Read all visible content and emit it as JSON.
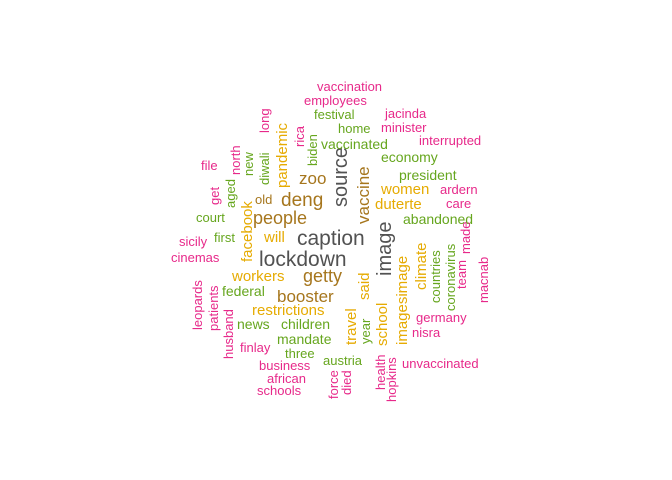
{
  "colors": {
    "gray": "#525252",
    "brown": "#a6761d",
    "gold": "#e6ab02",
    "green": "#66a61e",
    "magenta": "#e7298a"
  },
  "words": [
    {
      "text": "caption",
      "color": "gray"
    },
    {
      "text": "lockdown",
      "color": "gray"
    },
    {
      "text": "source",
      "color": "gray"
    },
    {
      "text": "image",
      "color": "gray"
    },
    {
      "text": "deng",
      "color": "brown"
    },
    {
      "text": "people",
      "color": "brown"
    },
    {
      "text": "getty",
      "color": "brown"
    },
    {
      "text": "booster",
      "color": "brown"
    },
    {
      "text": "zoo",
      "color": "brown"
    },
    {
      "text": "vaccine",
      "color": "brown"
    },
    {
      "text": "women",
      "color": "gold"
    },
    {
      "text": "duterte",
      "color": "gold"
    },
    {
      "text": "workers",
      "color": "gold"
    },
    {
      "text": "restrictions",
      "color": "gold"
    },
    {
      "text": "will",
      "color": "gold"
    },
    {
      "text": "facebook",
      "color": "gold"
    },
    {
      "text": "pandemic",
      "color": "gold"
    },
    {
      "text": "said",
      "color": "gold"
    },
    {
      "text": "travel",
      "color": "gold"
    },
    {
      "text": "school",
      "color": "gold"
    },
    {
      "text": "imagesimage",
      "color": "gold"
    },
    {
      "text": "climate",
      "color": "gold"
    },
    {
      "text": "vaccinated",
      "color": "green"
    },
    {
      "text": "economy",
      "color": "green"
    },
    {
      "text": "president",
      "color": "green"
    },
    {
      "text": "abandoned",
      "color": "green"
    },
    {
      "text": "children",
      "color": "green"
    },
    {
      "text": "mandate",
      "color": "green"
    },
    {
      "text": "federal",
      "color": "green"
    },
    {
      "text": "news",
      "color": "green"
    },
    {
      "text": "three",
      "color": "green"
    },
    {
      "text": "austria",
      "color": "green"
    },
    {
      "text": "festival",
      "color": "green"
    },
    {
      "text": "home",
      "color": "green"
    },
    {
      "text": "court",
      "color": "green"
    },
    {
      "text": "first",
      "color": "green"
    },
    {
      "text": "year",
      "color": "green"
    },
    {
      "text": "countries",
      "color": "green"
    },
    {
      "text": "coronavirus",
      "color": "green"
    },
    {
      "text": "diwali",
      "color": "green"
    },
    {
      "text": "new",
      "color": "green"
    },
    {
      "text": "aged",
      "color": "green"
    },
    {
      "text": "biden",
      "color": "green"
    },
    {
      "text": "old",
      "color": "brown"
    },
    {
      "text": "vaccination",
      "color": "magenta"
    },
    {
      "text": "employees",
      "color": "magenta"
    },
    {
      "text": "jacinda",
      "color": "magenta"
    },
    {
      "text": "minister",
      "color": "magenta"
    },
    {
      "text": "interrupted",
      "color": "magenta"
    },
    {
      "text": "ardern",
      "color": "magenta"
    },
    {
      "text": "care",
      "color": "magenta"
    },
    {
      "text": "made",
      "color": "magenta"
    },
    {
      "text": "team",
      "color": "magenta"
    },
    {
      "text": "macnab",
      "color": "magenta"
    },
    {
      "text": "germany",
      "color": "magenta"
    },
    {
      "text": "nisra",
      "color": "magenta"
    },
    {
      "text": "unvaccinated",
      "color": "magenta"
    },
    {
      "text": "file",
      "color": "magenta"
    },
    {
      "text": "get",
      "color": "magenta"
    },
    {
      "text": "north",
      "color": "magenta"
    },
    {
      "text": "long",
      "color": "magenta"
    },
    {
      "text": "rica",
      "color": "magenta"
    },
    {
      "text": "sicily",
      "color": "magenta"
    },
    {
      "text": "cinemas",
      "color": "magenta"
    },
    {
      "text": "leopards",
      "color": "magenta"
    },
    {
      "text": "patients",
      "color": "magenta"
    },
    {
      "text": "husband",
      "color": "magenta"
    },
    {
      "text": "finlay",
      "color": "magenta"
    },
    {
      "text": "business",
      "color": "magenta"
    },
    {
      "text": "african",
      "color": "magenta"
    },
    {
      "text": "schools",
      "color": "magenta"
    },
    {
      "text": "force",
      "color": "magenta"
    },
    {
      "text": "died",
      "color": "magenta"
    },
    {
      "text": "health",
      "color": "magenta"
    },
    {
      "text": "hopkins",
      "color": "magenta"
    }
  ]
}
